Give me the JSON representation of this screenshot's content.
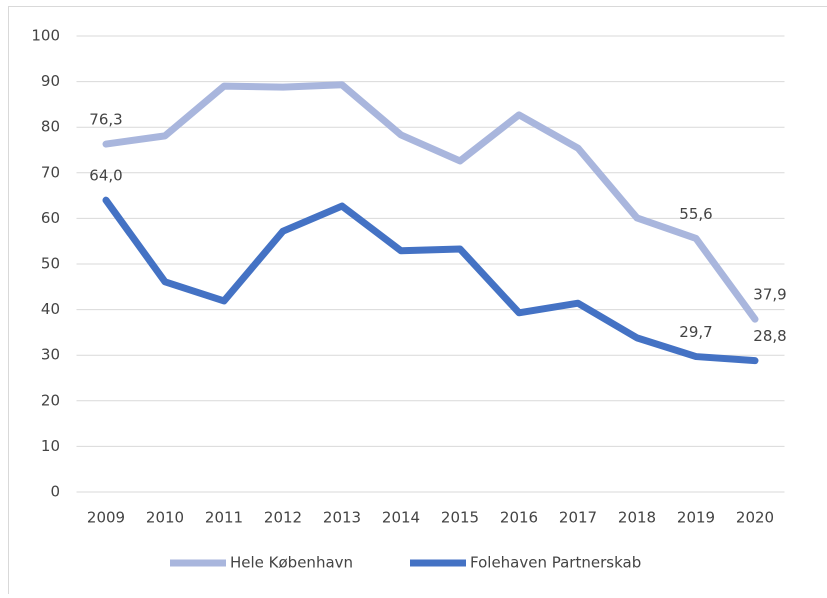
{
  "chart_data": {
    "type": "line",
    "categories": [
      "2009",
      "2010",
      "2011",
      "2012",
      "2013",
      "2014",
      "2015",
      "2016",
      "2017",
      "2018",
      "2019",
      "2020"
    ],
    "series": [
      {
        "name": "Hele København",
        "color": "#a9b6dd",
        "values": [
          76.3,
          78.1,
          89.0,
          88.8,
          89.3,
          78.3,
          72.6,
          82.7,
          75.4,
          60.1,
          55.6,
          37.9
        ],
        "value_labels": [
          "76,3",
          null,
          null,
          null,
          null,
          null,
          null,
          null,
          null,
          null,
          "55,6",
          "37,9"
        ]
      },
      {
        "name": "Folehaven Partnerskab",
        "color": "#4472c4",
        "values": [
          64.0,
          46.1,
          41.9,
          57.2,
          62.7,
          52.9,
          53.3,
          39.3,
          41.4,
          33.8,
          29.7,
          28.8
        ],
        "value_labels": [
          "64,0",
          null,
          null,
          null,
          null,
          null,
          null,
          null,
          null,
          null,
          "29,7",
          "28,8"
        ]
      }
    ],
    "ylim": [
      0,
      100
    ],
    "yticks": [
      0,
      10,
      20,
      30,
      40,
      50,
      60,
      70,
      80,
      90,
      100
    ],
    "grid": true,
    "legend": "bottom"
  }
}
